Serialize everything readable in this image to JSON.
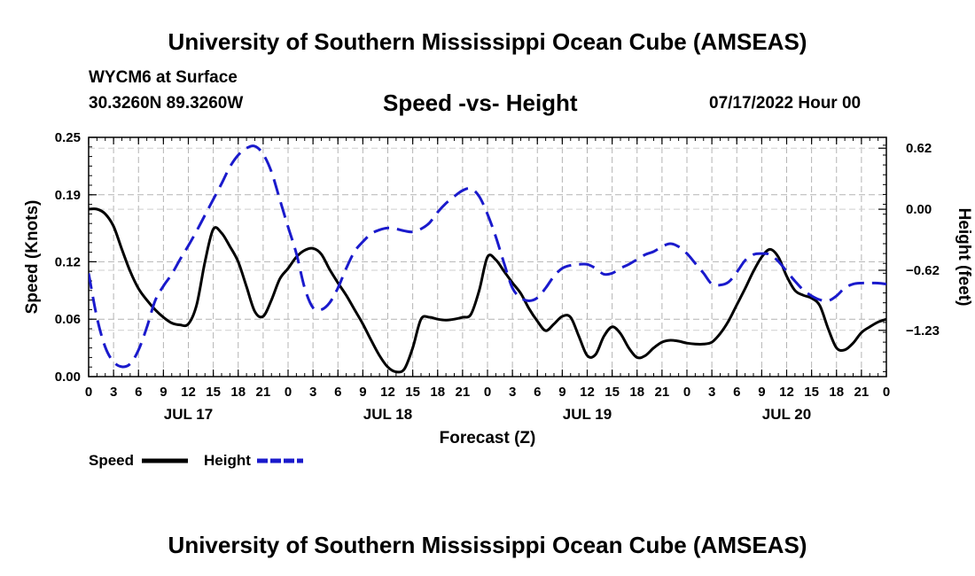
{
  "header": {
    "title": "University of Southern Mississippi Ocean Cube (AMSEAS)",
    "station": "WYCM6 at Surface",
    "coords": "30.3260N  89.3260W",
    "subtitle": "Speed -vs- Height",
    "datetime": "07/17/2022 Hour 00"
  },
  "footer": {
    "title": "University of Southern Mississippi Ocean Cube (AMSEAS)"
  },
  "chart_data": {
    "type": "line",
    "xlabel": "Forecast (Z)",
    "ylabel": "Speed (Knots)",
    "y2label": "Height (feet)",
    "xlim": [
      0,
      96
    ],
    "ylim": [
      0,
      0.25
    ],
    "y2lim": [
      -1.7,
      0.73
    ],
    "x_ticks": [
      0,
      3,
      6,
      9,
      12,
      15,
      18,
      21,
      24,
      27,
      30,
      33,
      36,
      39,
      42,
      45,
      48,
      51,
      54,
      57,
      60,
      63,
      66,
      69,
      72,
      75,
      78,
      81,
      84,
      87,
      90,
      93,
      96
    ],
    "x_tick_labels": [
      "0",
      "3",
      "6",
      "9",
      "12",
      "15",
      "18",
      "21",
      "0",
      "3",
      "6",
      "9",
      "12",
      "15",
      "18",
      "21",
      "0",
      "3",
      "6",
      "9",
      "12",
      "15",
      "18",
      "21",
      "0",
      "3",
      "6",
      "9",
      "12",
      "15",
      "18",
      "21",
      "0"
    ],
    "day_labels": [
      {
        "x": 12,
        "label": "JUL 17"
      },
      {
        "x": 36,
        "label": "JUL 18"
      },
      {
        "x": 60,
        "label": "JUL 19"
      },
      {
        "x": 84,
        "label": "JUL 20"
      }
    ],
    "y_ticks": [
      0,
      0.06,
      0.12,
      0.19,
      0.25
    ],
    "y_tick_labels": [
      "0.00",
      "0.06",
      "0.12",
      "0.19",
      "0.25"
    ],
    "y2_ticks": [
      -1.23,
      -0.62,
      0.0,
      0.62
    ],
    "y2_tick_labels": [
      "−1.23",
      "−0.62",
      "0.00",
      "0.62"
    ],
    "series": [
      {
        "name": "Speed",
        "axis": "left",
        "color": "#000000",
        "dash": "solid",
        "x": [
          0,
          1,
          2,
          3,
          4,
          5,
          6,
          7,
          8,
          9,
          10,
          11,
          12,
          13,
          14,
          15,
          16,
          17,
          18,
          19,
          20,
          21,
          22,
          23,
          24,
          25,
          26,
          27,
          28,
          29,
          30,
          31,
          32,
          33,
          34,
          35,
          36,
          37,
          38,
          39,
          40,
          41,
          42,
          43,
          44,
          45,
          46,
          47,
          48,
          49,
          50,
          51,
          52,
          53,
          54,
          55,
          56,
          57,
          58,
          59,
          60,
          61,
          62,
          63,
          64,
          65,
          66,
          67,
          68,
          69,
          70,
          71,
          72,
          73,
          74,
          75,
          76,
          77,
          78,
          79,
          80,
          81,
          82,
          83,
          84,
          85,
          86,
          87,
          88,
          89,
          90,
          91,
          92,
          93,
          94,
          95,
          96
        ],
        "values": [
          0.175,
          0.175,
          0.17,
          0.157,
          0.133,
          0.11,
          0.092,
          0.08,
          0.07,
          0.062,
          0.056,
          0.054,
          0.055,
          0.075,
          0.12,
          0.154,
          0.15,
          0.136,
          0.12,
          0.094,
          0.068,
          0.063,
          0.08,
          0.102,
          0.113,
          0.125,
          0.132,
          0.134,
          0.128,
          0.112,
          0.098,
          0.085,
          0.07,
          0.055,
          0.038,
          0.022,
          0.01,
          0.005,
          0.008,
          0.03,
          0.06,
          0.062,
          0.06,
          0.059,
          0.06,
          0.062,
          0.065,
          0.09,
          0.125,
          0.122,
          0.11,
          0.098,
          0.087,
          0.071,
          0.058,
          0.048,
          0.055,
          0.063,
          0.062,
          0.042,
          0.022,
          0.023,
          0.042,
          0.052,
          0.045,
          0.03,
          0.02,
          0.022,
          0.03,
          0.036,
          0.038,
          0.037,
          0.035,
          0.034,
          0.034,
          0.036,
          0.045,
          0.058,
          0.075,
          0.092,
          0.11,
          0.125,
          0.133,
          0.125,
          0.105,
          0.09,
          0.085,
          0.082,
          0.074,
          0.05,
          0.03,
          0.028,
          0.035,
          0.046,
          0.052,
          0.057,
          0.06
        ]
      },
      {
        "name": "Height",
        "axis": "right",
        "color": "#1a1acc",
        "dash": "dashed",
        "x": [
          0,
          1,
          2,
          3,
          4,
          5,
          6,
          7,
          8,
          9,
          10,
          11,
          12,
          13,
          14,
          15,
          16,
          17,
          18,
          19,
          20,
          21,
          22,
          23,
          24,
          25,
          26,
          27,
          28,
          29,
          30,
          31,
          32,
          33,
          34,
          35,
          36,
          37,
          38,
          39,
          40,
          41,
          42,
          43,
          44,
          45,
          46,
          47,
          48,
          49,
          50,
          51,
          52,
          53,
          54,
          55,
          56,
          57,
          58,
          59,
          60,
          61,
          62,
          63,
          64,
          65,
          66,
          67,
          68,
          69,
          70,
          71,
          72,
          73,
          74,
          75,
          76,
          77,
          78,
          79,
          80,
          81,
          82,
          83,
          84,
          85,
          86,
          87,
          88,
          89,
          90,
          91,
          92,
          93,
          94,
          95,
          96
        ],
        "values": [
          -0.65,
          -1.1,
          -1.4,
          -1.55,
          -1.6,
          -1.57,
          -1.43,
          -1.2,
          -0.93,
          -0.78,
          -0.66,
          -0.51,
          -0.37,
          -0.22,
          -0.06,
          0.1,
          0.26,
          0.43,
          0.55,
          0.62,
          0.64,
          0.56,
          0.38,
          0.1,
          -0.18,
          -0.45,
          -0.8,
          -1.0,
          -1.02,
          -0.95,
          -0.8,
          -0.6,
          -0.43,
          -0.33,
          -0.25,
          -0.21,
          -0.19,
          -0.2,
          -0.22,
          -0.23,
          -0.2,
          -0.14,
          -0.03,
          0.06,
          0.13,
          0.19,
          0.21,
          0.13,
          -0.05,
          -0.28,
          -0.55,
          -0.8,
          -0.9,
          -0.93,
          -0.9,
          -0.8,
          -0.68,
          -0.6,
          -0.57,
          -0.56,
          -0.56,
          -0.6,
          -0.66,
          -0.65,
          -0.6,
          -0.56,
          -0.51,
          -0.46,
          -0.43,
          -0.38,
          -0.35,
          -0.38,
          -0.45,
          -0.55,
          -0.65,
          -0.76,
          -0.77,
          -0.74,
          -0.64,
          -0.52,
          -0.46,
          -0.45,
          -0.46,
          -0.53,
          -0.63,
          -0.73,
          -0.82,
          -0.88,
          -0.92,
          -0.93,
          -0.88,
          -0.8,
          -0.76,
          -0.75,
          -0.75,
          -0.75,
          -0.76
        ]
      }
    ],
    "legend": [
      {
        "label": "Speed",
        "color": "#000000"
      },
      {
        "label": "Height",
        "color": "#1a1acc"
      }
    ]
  }
}
